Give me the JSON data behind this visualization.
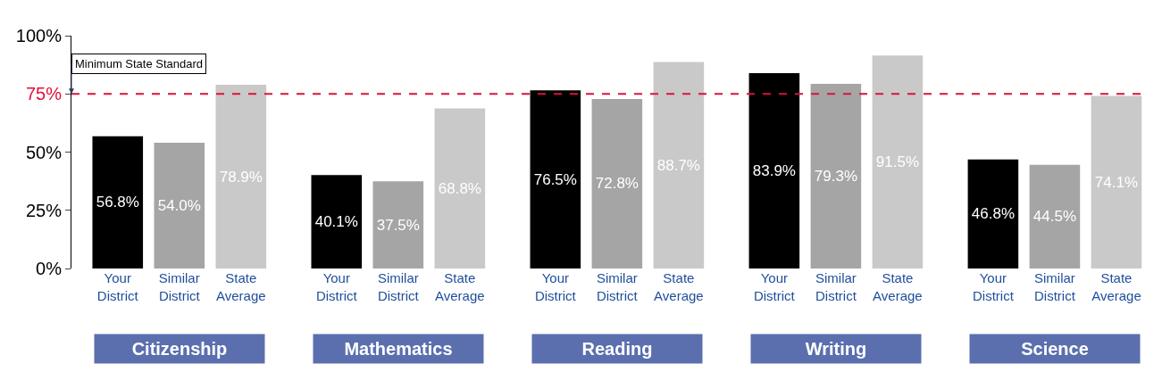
{
  "chart_data": {
    "type": "bar",
    "categories": [
      "Your District",
      "Similar District",
      "State Average",
      "Your District",
      "Similar District",
      "State Average",
      "Your District",
      "Similar District",
      "State Average",
      "Your District",
      "Similar District",
      "State Average",
      "Your District",
      "Similar District",
      "State Average"
    ],
    "values": [
      56.8,
      54.0,
      78.9,
      40.1,
      37.5,
      68.8,
      76.5,
      72.8,
      88.7,
      83.9,
      79.3,
      91.5,
      46.8,
      44.5,
      74.1
    ],
    "value_labels": [
      "56.8%",
      "54.0%",
      "78.9%",
      "40.1%",
      "37.5%",
      "68.8%",
      "76.5%",
      "72.8%",
      "88.7%",
      "83.9%",
      "79.3%",
      "91.5%",
      "46.8%",
      "44.5%",
      "74.1%"
    ],
    "colors": [
      "#000000",
      "#a6a5a5",
      "#cac9ca",
      "#000000",
      "#a6a5a5",
      "#cac9ca",
      "#000000",
      "#a6a5a5",
      "#cac9ca",
      "#000000",
      "#a6a5a5",
      "#cac9ca",
      "#000000",
      "#a6a5a5",
      "#cac9ca"
    ],
    "ylim": [
      0,
      100
    ],
    "yticks": [
      {
        "value": 0,
        "label": "0%"
      },
      {
        "value": 25,
        "label": "25%"
      },
      {
        "value": 50,
        "label": "50%"
      },
      {
        "value": 75,
        "label": "75%"
      },
      {
        "value": 100,
        "label": "100%"
      }
    ],
    "ref_lines": [
      {
        "axis": "y",
        "value": 75,
        "label": "Minimum State Standard",
        "color": "#e0103a",
        "line_style": "dashed"
      }
    ],
    "annotations": [
      "Citizenship",
      "Mathematics",
      "Reading",
      "Writing",
      "Science"
    ],
    "legend": false
  }
}
